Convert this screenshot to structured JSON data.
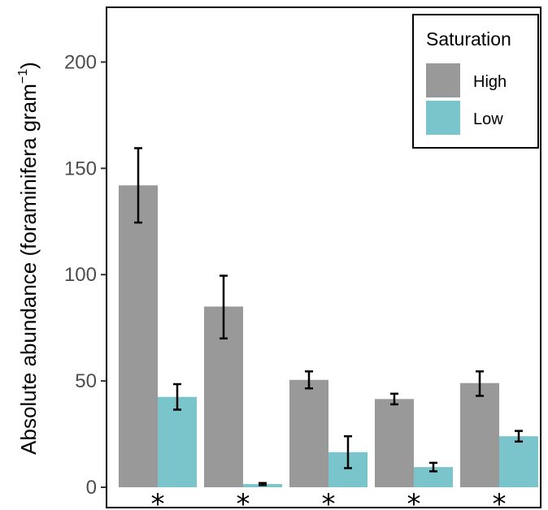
{
  "chart_data": {
    "type": "bar",
    "ylabel_main": "Absolute abundance (foraminifera gram",
    "ylabel_sup": "−1",
    "ylabel_close": ")",
    "xlabel": "",
    "ylim": [
      0,
      225
    ],
    "yticks": [
      0,
      50,
      100,
      150,
      200
    ],
    "grid": false,
    "legend": {
      "title": "Saturation",
      "position": "top-right",
      "entries": [
        {
          "label": "High",
          "color": "#999999"
        },
        {
          "label": "Low",
          "color": "#7ac5cc"
        }
      ]
    },
    "groups": 5,
    "series": [
      {
        "name": "High",
        "color": "#999999",
        "values": [
          142,
          85,
          50.5,
          41.5,
          49
        ],
        "err_low": [
          124.5,
          70,
          46.5,
          39,
          43
        ],
        "err_high": [
          159.5,
          99.5,
          54.5,
          44,
          54.5
        ]
      },
      {
        "name": "Low",
        "color": "#7ac5cc",
        "values": [
          42.5,
          1.5,
          16.5,
          9.5,
          24
        ],
        "err_low": [
          36.5,
          1,
          9,
          7.5,
          21.5
        ],
        "err_high": [
          48.5,
          2,
          24,
          11.5,
          26.5
        ]
      }
    ],
    "annotations": [
      "*",
      "*",
      "*",
      "*",
      "*"
    ]
  }
}
